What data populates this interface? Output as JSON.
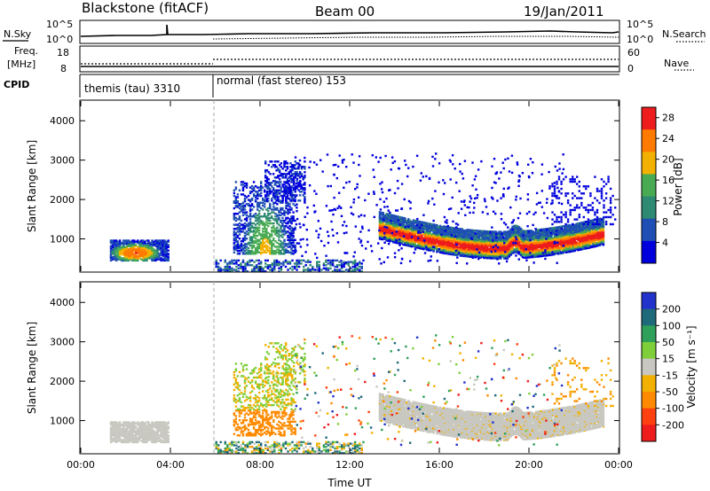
{
  "header": {
    "title": "Blackstone (fitACF)",
    "beam": "Beam 00",
    "date": "19/Jan/2011"
  },
  "noise_panel": {
    "left_label": "N.Sky",
    "right_label": "N.Search",
    "tick_top": "10^5",
    "tick_bottom": "10^0"
  },
  "freq_panel": {
    "left_label_1": "Freq.",
    "left_label_2": "[MHz]",
    "left_tick_top": "18",
    "left_tick_bottom": "8",
    "right_label": "Nave",
    "right_tick_top": "60",
    "right_tick_bottom": "0"
  },
  "cpid_panel": {
    "label": "CPID",
    "modes": [
      {
        "name": "themis (tau) 3310",
        "start_hour": 0
      },
      {
        "name": "normal (fast stereo) 153",
        "start_hour": 6
      }
    ]
  },
  "colors": {
    "power_scale": [
      "#0000dd",
      "#1f4fb4",
      "#2e8a72",
      "#48ab53",
      "#f2b000",
      "#ff7a00",
      "#ee1c1c"
    ],
    "velocity_scale": [
      "#2233cc",
      "#1f6a7a",
      "#2ea05a",
      "#7fcf3a",
      "#c8c8c0",
      "#f2b000",
      "#ff8a00",
      "#ff4010",
      "#ee1c1c"
    ]
  },
  "chart_data": [
    {
      "type": "heatmap",
      "name": "power",
      "xlabel": "",
      "ylabel": "Slant Range [km]",
      "xlim": [
        0,
        24
      ],
      "ylim": [
        180,
        4500
      ],
      "y_ticks": [
        "1000",
        "2000",
        "3000",
        "4000"
      ],
      "colorbar": {
        "label": "Power [dB]",
        "ticks": [
          "4",
          "8",
          "12",
          "16",
          "20",
          "24",
          "28"
        ],
        "range": [
          0,
          30
        ]
      },
      "regions": [
        {
          "feature": "morning patch",
          "x_start": 1.3,
          "x_end": 3.9,
          "y_low": 500,
          "y_high": 1000,
          "peak_db": 26
        },
        {
          "feature": "evening arc",
          "x_start": 13.2,
          "x_end": 23.3,
          "y_low": 650,
          "y_high": 1600,
          "peak_db": 28
        },
        {
          "feature": "08h patch",
          "x_start": 6.8,
          "x_end": 9.5,
          "y_low": 700,
          "y_high": 2500,
          "peak_db": 18
        },
        {
          "feature": "09h high range",
          "x_start": 8.2,
          "x_end": 10.0,
          "y_low": 2000,
          "y_high": 3000,
          "peak_db": 8
        }
      ]
    },
    {
      "type": "heatmap",
      "name": "velocity",
      "xlabel": "Time UT",
      "ylabel": "Slant Range [km]",
      "xlim": [
        0,
        24
      ],
      "ylim": [
        180,
        4500
      ],
      "x_ticks": [
        "00:00",
        "04:00",
        "08:00",
        "12:00",
        "16:00",
        "20:00",
        "00:00"
      ],
      "y_ticks": [
        "1000",
        "2000",
        "3000",
        "4000"
      ],
      "colorbar": {
        "label": "Velocity [m s⁻¹]",
        "ticks": [
          "200",
          "100",
          "50",
          "15",
          "-15",
          "-50",
          "-100",
          "-200"
        ]
      },
      "regions": [
        {
          "feature": "morning patch",
          "x_start": 1.3,
          "x_end": 3.9,
          "y_low": 450,
          "y_high": 950,
          "velocity": 0
        },
        {
          "feature": "evening arc",
          "x_start": 13.5,
          "x_end": 23.3,
          "y_low": 650,
          "y_high": 1550,
          "velocity": 0
        },
        {
          "feature": "08h patch",
          "x_start": 6.8,
          "x_end": 8.7,
          "y_low": 650,
          "y_high": 1300,
          "velocity": -60
        }
      ]
    }
  ]
}
